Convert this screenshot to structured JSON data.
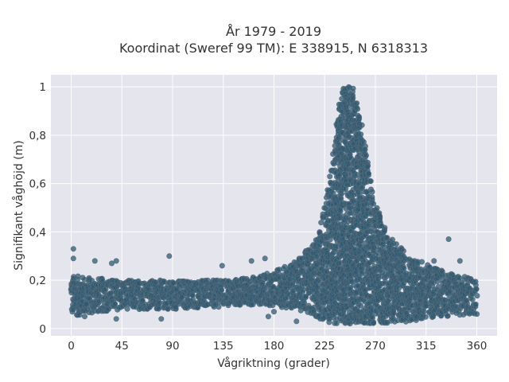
{
  "chart_data": {
    "type": "scatter",
    "title_lines": [
      "År 1979 - 2019",
      "Koordinat (Sweref 99 TM): E 338915, N 6318313"
    ],
    "xlabel": "Vågriktning (grader)",
    "ylabel": "Signifikant våghöjd (m)",
    "xlim": [
      -18,
      378
    ],
    "ylim": [
      -0.03,
      1.05
    ],
    "x_ticks": [
      0,
      45,
      90,
      135,
      180,
      225,
      270,
      315,
      360
    ],
    "x_tick_labels": [
      "0",
      "45",
      "90",
      "135",
      "180",
      "225",
      "270",
      "315",
      "360"
    ],
    "y_ticks": [
      0,
      0.2,
      0.4,
      0.6,
      0.8,
      1
    ],
    "y_tick_labels": [
      "0",
      "0,2",
      "0,4",
      "0,6",
      "0,8",
      "1"
    ],
    "grid": true,
    "series": [
      {
        "color": "#2f5a72",
        "density_profile": [
          {
            "x": 0,
            "ymin": 0.05,
            "ymax": 0.22
          },
          {
            "x": 45,
            "ymin": 0.08,
            "ymax": 0.2
          },
          {
            "x": 90,
            "ymin": 0.08,
            "ymax": 0.2
          },
          {
            "x": 135,
            "ymin": 0.09,
            "ymax": 0.2
          },
          {
            "x": 170,
            "ymin": 0.1,
            "ymax": 0.22
          },
          {
            "x": 200,
            "ymin": 0.08,
            "ymax": 0.28
          },
          {
            "x": 220,
            "ymin": 0.04,
            "ymax": 0.38
          },
          {
            "x": 232,
            "ymin": 0.02,
            "ymax": 0.7
          },
          {
            "x": 240,
            "ymin": 0.02,
            "ymax": 1.0
          },
          {
            "x": 250,
            "ymin": 0.02,
            "ymax": 1.0
          },
          {
            "x": 258,
            "ymin": 0.02,
            "ymax": 0.85
          },
          {
            "x": 268,
            "ymin": 0.02,
            "ymax": 0.55
          },
          {
            "x": 280,
            "ymin": 0.02,
            "ymax": 0.4
          },
          {
            "x": 300,
            "ymin": 0.03,
            "ymax": 0.3
          },
          {
            "x": 330,
            "ymin": 0.05,
            "ymax": 0.24
          },
          {
            "x": 360,
            "ymin": 0.06,
            "ymax": 0.2
          }
        ],
        "outliers": [
          {
            "x": 2,
            "y": 0.33
          },
          {
            "x": 2,
            "y": 0.29
          },
          {
            "x": 21,
            "y": 0.28
          },
          {
            "x": 36,
            "y": 0.27
          },
          {
            "x": 40,
            "y": 0.28
          },
          {
            "x": 87,
            "y": 0.3
          },
          {
            "x": 134,
            "y": 0.26
          },
          {
            "x": 160,
            "y": 0.28
          },
          {
            "x": 172,
            "y": 0.29
          },
          {
            "x": 335,
            "y": 0.37
          },
          {
            "x": 345,
            "y": 0.28
          },
          {
            "x": 322,
            "y": 0.28
          },
          {
            "x": 40,
            "y": 0.04
          },
          {
            "x": 80,
            "y": 0.04
          },
          {
            "x": 175,
            "y": 0.05
          },
          {
            "x": 200,
            "y": 0.03
          },
          {
            "x": 12,
            "y": 0.05
          },
          {
            "x": 180,
            "y": 0.07
          }
        ]
      }
    ]
  }
}
